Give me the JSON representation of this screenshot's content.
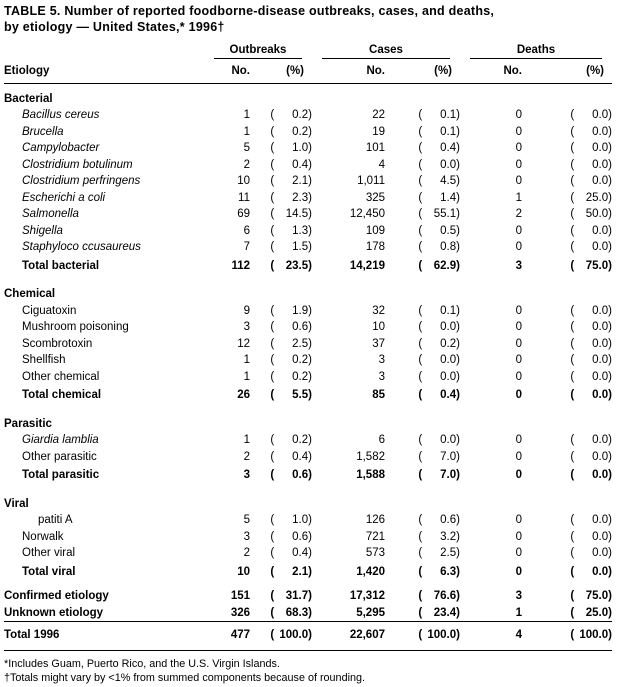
{
  "title": {
    "line1": "TABLE 5. Number of reported foodborne-disease outbreaks, cases, and deaths,",
    "line2": "by etiology — United States,* 1996†"
  },
  "header": {
    "etiology": "Etiology",
    "groups": [
      "Outbreaks",
      "Cases",
      "Deaths"
    ],
    "no_label": "No.",
    "pct_label": "(%)"
  },
  "sections": [
    {
      "name": "Bacterial",
      "rows": [
        {
          "label": "Bacillus cereus",
          "italic": true,
          "indent": 1,
          "values": [
            "1",
            "0.2",
            "22",
            "0.1",
            "0",
            "0.0"
          ]
        },
        {
          "label": "Brucella",
          "italic": true,
          "indent": 1,
          "values": [
            "1",
            "0.2",
            "19",
            "0.1",
            "0",
            "0.0"
          ]
        },
        {
          "label": "Campylobacter",
          "italic": true,
          "indent": 1,
          "values": [
            "5",
            "1.0",
            "101",
            "0.4",
            "0",
            "0.0"
          ]
        },
        {
          "label": "Clostridium botulinum",
          "italic": true,
          "indent": 1,
          "values": [
            "2",
            "0.4",
            "4",
            "0.0",
            "0",
            "0.0"
          ]
        },
        {
          "label": "Clostridium perfringens",
          "italic": true,
          "indent": 1,
          "values": [
            "10",
            "2.1",
            "1,011",
            "4.5",
            "0",
            "0.0"
          ]
        },
        {
          "label": "Escherichi a coli",
          "italic": true,
          "indent": 1,
          "values": [
            "11",
            "2.3",
            "325",
            "1.4",
            "1",
            "25.0"
          ]
        },
        {
          "label": "Salmonella",
          "italic": true,
          "indent": 1,
          "values": [
            "69",
            "14.5",
            "12,450",
            "55.1",
            "2",
            "50.0"
          ]
        },
        {
          "label": "Shigella",
          "italic": true,
          "indent": 1,
          "values": [
            "6",
            "1.3",
            "109",
            "0.5",
            "0",
            "0.0"
          ]
        },
        {
          "label": "Staphyloco ccusaureus",
          "italic": true,
          "indent": 1,
          "values": [
            "7",
            "1.5",
            "178",
            "0.8",
            "0",
            "0.0"
          ]
        }
      ],
      "total": {
        "label": "Total bacterial",
        "values": [
          "112",
          "23.5",
          "14,219",
          "62.9",
          "3",
          "75.0"
        ]
      }
    },
    {
      "name": "Chemical",
      "rows": [
        {
          "label": "Ciguatoxin",
          "italic": false,
          "indent": 1,
          "values": [
            "9",
            "1.9",
            "32",
            "0.1",
            "0",
            "0.0"
          ]
        },
        {
          "label": "Mushroom poisoning",
          "italic": false,
          "indent": 1,
          "values": [
            "3",
            "0.6",
            "10",
            "0.0",
            "0",
            "0.0"
          ]
        },
        {
          "label": "Scombrotoxin",
          "italic": false,
          "indent": 1,
          "values": [
            "12",
            "2.5",
            "37",
            "0.2",
            "0",
            "0.0"
          ]
        },
        {
          "label": "Shellfish",
          "italic": false,
          "indent": 1,
          "values": [
            "1",
            "0.2",
            "3",
            "0.0",
            "0",
            "0.0"
          ]
        },
        {
          "label": "Other chemical",
          "italic": false,
          "indent": 1,
          "values": [
            "1",
            "0.2",
            "3",
            "0.0",
            "0",
            "0.0"
          ]
        }
      ],
      "total": {
        "label": "Total chemical",
        "values": [
          "26",
          "5.5",
          "85",
          "0.4",
          "0",
          "0.0"
        ]
      }
    },
    {
      "name": "Parasitic",
      "rows": [
        {
          "label": "Giardia lamblia",
          "italic": true,
          "indent": 1,
          "values": [
            "1",
            "0.2",
            "6",
            "0.0",
            "0",
            "0.0"
          ]
        },
        {
          "label": "Other parasitic",
          "italic": false,
          "indent": 1,
          "values": [
            "2",
            "0.4",
            "1,582",
            "7.0",
            "0",
            "0.0"
          ]
        }
      ],
      "total": {
        "label": "Total parasitic",
        "values": [
          "3",
          "0.6",
          "1,588",
          "7.0",
          "0",
          "0.0"
        ]
      }
    },
    {
      "name": "Viral",
      "rows": [
        {
          "label": "patiti A",
          "italic": false,
          "indent": 2,
          "values": [
            "5",
            "1.0",
            "126",
            "0.6",
            "0",
            "0.0"
          ]
        },
        {
          "label": "Norwalk",
          "italic": false,
          "indent": 1,
          "values": [
            "3",
            "0.6",
            "721",
            "3.2",
            "0",
            "0.0"
          ]
        },
        {
          "label": "Other viral",
          "italic": false,
          "indent": 1,
          "values": [
            "2",
            "0.4",
            "573",
            "2.5",
            "0",
            "0.0"
          ]
        }
      ],
      "total": {
        "label": "Total viral",
        "values": [
          "10",
          "2.1",
          "1,420",
          "6.3",
          "0",
          "0.0"
        ]
      }
    }
  ],
  "summary": [
    {
      "label": "Confirmed etiology",
      "values": [
        "151",
        "31.7",
        "17,312",
        "76.6",
        "3",
        "75.0"
      ]
    },
    {
      "label": "Unknown etiology",
      "values": [
        "326",
        "68.3",
        "5,295",
        "23.4",
        "1",
        "25.0"
      ]
    }
  ],
  "grand_total": {
    "label": "Total 1996",
    "values": [
      "477",
      "100.0",
      "22,607",
      "100.0",
      "4",
      "100.0"
    ]
  },
  "footnotes": [
    "*Includes Guam, Puerto Rico, and the U.S. Virgin Islands.",
    "†Totals might vary by <1% from summed components because of rounding."
  ]
}
